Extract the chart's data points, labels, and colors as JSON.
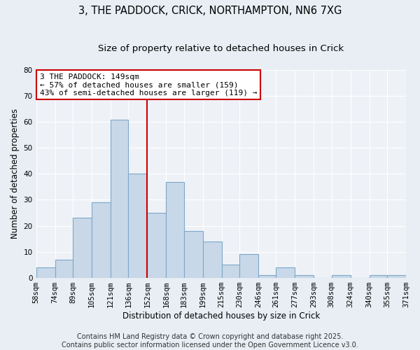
{
  "title1": "3, THE PADDOCK, CRICK, NORTHAMPTON, NN6 7XG",
  "title2": "Size of property relative to detached houses in Crick",
  "xlabel": "Distribution of detached houses by size in Crick",
  "ylabel": "Number of detached properties",
  "bins": [
    58,
    74,
    89,
    105,
    121,
    136,
    152,
    168,
    183,
    199,
    215,
    230,
    246,
    261,
    277,
    293,
    308,
    324,
    340,
    355,
    371
  ],
  "counts": [
    4,
    7,
    23,
    29,
    61,
    40,
    25,
    37,
    18,
    14,
    5,
    9,
    1,
    4,
    1,
    0,
    1,
    0,
    1,
    1
  ],
  "bar_facecolor": "#c8d8e8",
  "bar_edgecolor": "#7fa8c8",
  "vline_x": 152,
  "vline_color": "#cc0000",
  "annotation_line1": "3 THE PADDOCK: 149sqm",
  "annotation_line2": "← 57% of detached houses are smaller (159)",
  "annotation_line3": "43% of semi-detached houses are larger (119) →",
  "annotation_box_edgecolor": "#cc0000",
  "annotation_box_facecolor": "#ffffff",
  "ylim": [
    0,
    80
  ],
  "yticks": [
    0,
    10,
    20,
    30,
    40,
    50,
    60,
    70,
    80
  ],
  "bg_color": "#e8eef4",
  "plot_bg_color": "#eef2f7",
  "footer_line1": "Contains HM Land Registry data © Crown copyright and database right 2025.",
  "footer_line2": "Contains public sector information licensed under the Open Government Licence v3.0.",
  "title_fontsize": 10.5,
  "subtitle_fontsize": 9.5,
  "axis_label_fontsize": 8.5,
  "tick_fontsize": 7.5,
  "annotation_fontsize": 8,
  "footer_fontsize": 7
}
